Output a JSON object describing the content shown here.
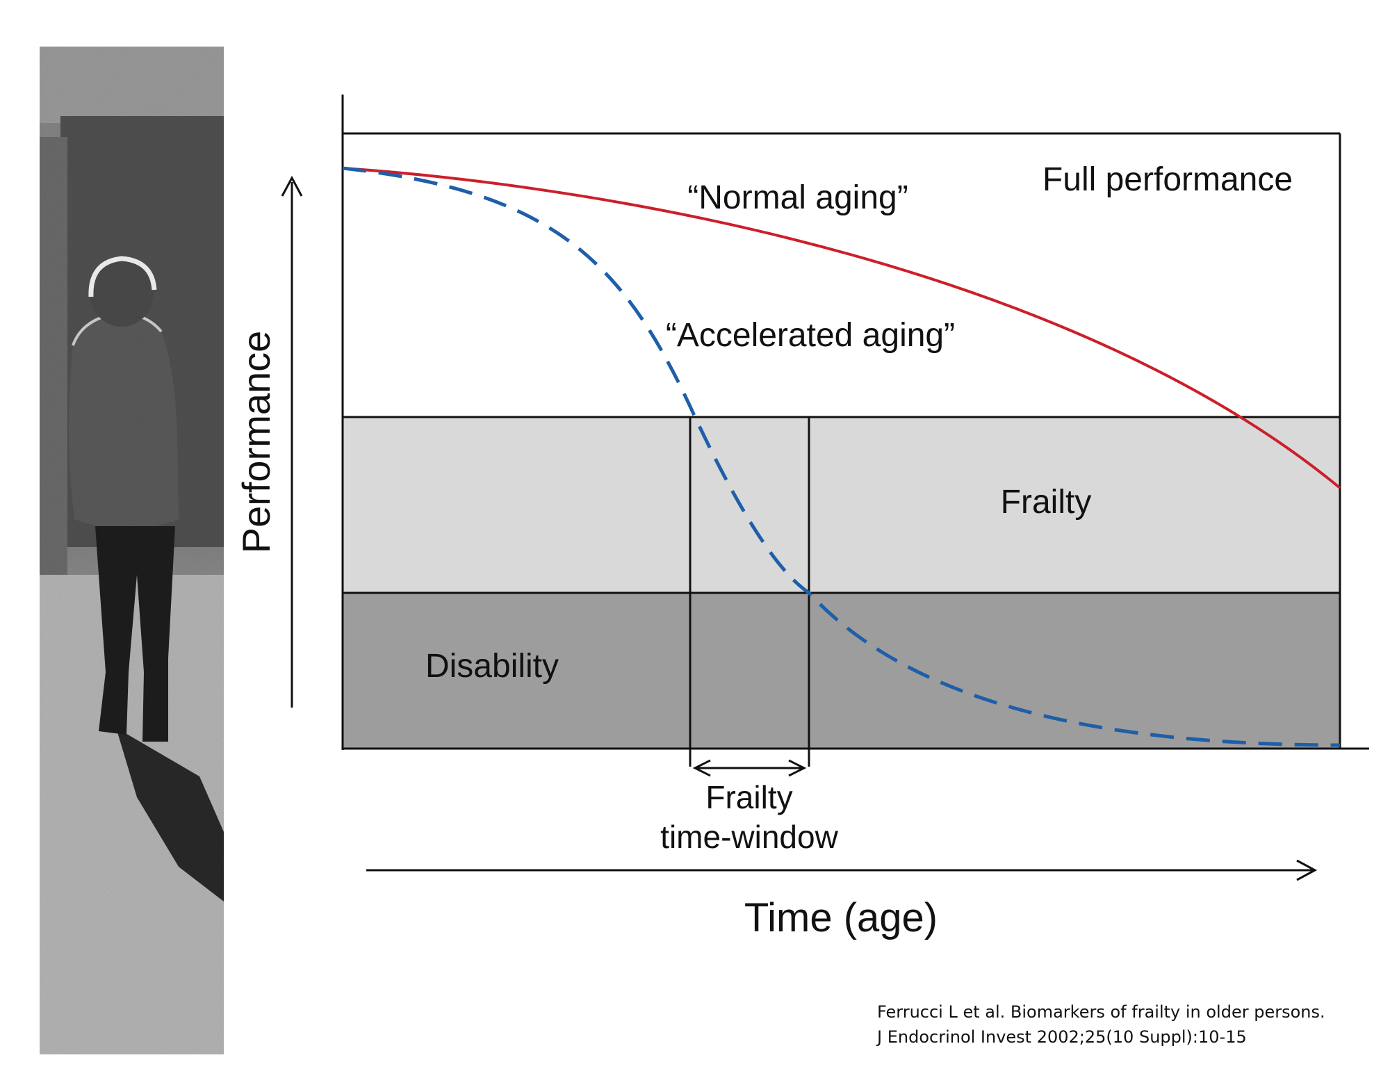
{
  "diagram": {
    "y_axis_label": "Performance",
    "x_axis_label": "Time (age)",
    "zones": {
      "full_performance": "Full performance",
      "frailty": "Frailty",
      "disability": "Disability"
    },
    "curves": {
      "normal_aging": "“Normal aging”",
      "accelerated_aging": "“Accelerated aging”"
    },
    "window": {
      "line1": "Frailty",
      "line2": "time-window"
    },
    "colors": {
      "normal_curve": "#cc1f2a",
      "accelerated_curve": "#1f5ea8",
      "frailty_zone": "#d9d9d9",
      "disability_zone": "#9d9d9d"
    }
  },
  "citation": {
    "line1": "Ferrucci L et al. Biomarkers of frailty in older persons.",
    "line2": "J Endocrinol Invest 2002;25(10 Suppl):10-15"
  }
}
